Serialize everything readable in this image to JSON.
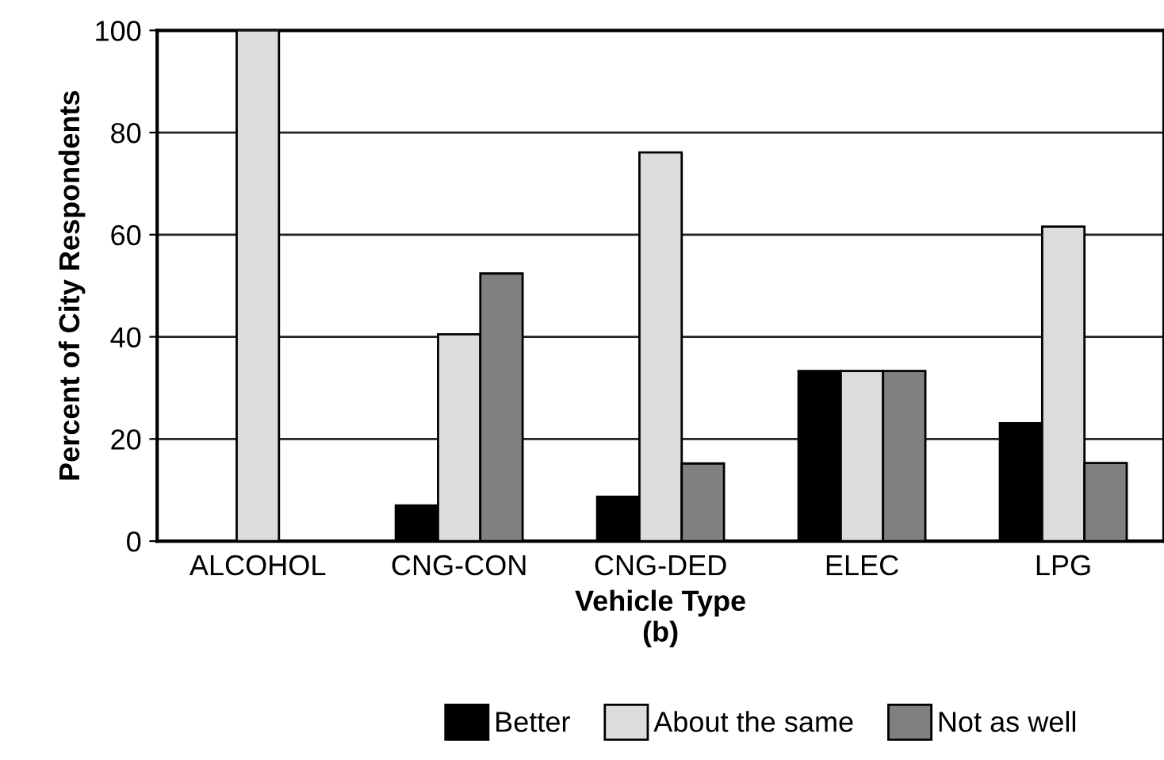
{
  "chart_data": {
    "type": "bar",
    "xlabel": "Vehicle Type\n(b)",
    "ylabel": "Percent of City Respondents",
    "categories": [
      "ALCOHOL",
      "CNG-CON",
      "CNG-DED",
      "ELEC",
      "LPG"
    ],
    "series": [
      {
        "name": "Better",
        "color": "#000000",
        "values": [
          null,
          7.0,
          8.7,
          33.3,
          23.1
        ]
      },
      {
        "name": "About the same",
        "color": "#dcdcdc",
        "values": [
          100,
          40.5,
          76.1,
          33.3,
          61.6
        ]
      },
      {
        "name": "Not as well",
        "color": "#808080",
        "values": [
          null,
          52.4,
          15.2,
          33.3,
          15.3
        ]
      }
    ],
    "ylim": [
      0,
      100
    ],
    "yticks": [
      0,
      20,
      40,
      60,
      80,
      100
    ],
    "grid": "y",
    "legend": "bottom"
  }
}
